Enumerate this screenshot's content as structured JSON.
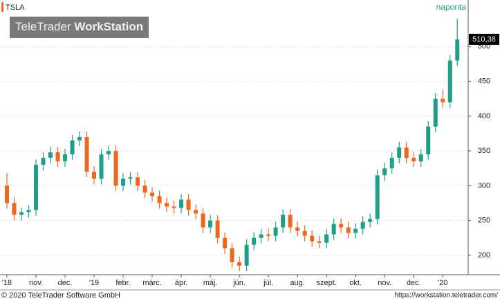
{
  "chart_data": {
    "type": "candlestick",
    "symbol": "TSLA",
    "interval": "naponta",
    "watermark": [
      "TeleTrader",
      "WorkStation"
    ],
    "last_label": "510,38",
    "footer_left": "© 2020 TeleTrader Software GmbH",
    "footer_right": "https://workstation.teletrader.com/",
    "up_color": "#1f9e89",
    "down_color": "#f0661e",
    "grid": true,
    "x": [
      0,
      1,
      2,
      3,
      4,
      5,
      6,
      7,
      8,
      9,
      10,
      11,
      12,
      13,
      14,
      15,
      16,
      17,
      18,
      19,
      20,
      21,
      22,
      23,
      24,
      25,
      26,
      27,
      28,
      29,
      30,
      31,
      32,
      33,
      34,
      35,
      36,
      37,
      38,
      39,
      40,
      41,
      42,
      43,
      44,
      45,
      46,
      47,
      48,
      49,
      50,
      51,
      52,
      53,
      54,
      55,
      56,
      57,
      58,
      59,
      60,
      61,
      62
    ],
    "open": [
      300,
      275,
      258,
      262,
      265,
      330,
      340,
      348,
      335,
      345,
      365,
      370,
      320,
      310,
      345,
      350,
      300,
      310,
      312,
      300,
      290,
      285,
      275,
      270,
      268,
      280,
      265,
      260,
      240,
      250,
      225,
      210,
      190,
      185,
      215,
      225,
      230,
      228,
      240,
      258,
      240,
      235,
      228,
      220,
      218,
      230,
      245,
      240,
      232,
      238,
      248,
      252,
      315,
      325,
      340,
      355,
      340,
      335,
      345,
      385,
      425,
      420,
      480
    ],
    "high": [
      318,
      283,
      268,
      272,
      338,
      348,
      356,
      356,
      353,
      373,
      378,
      378,
      328,
      353,
      358,
      358,
      318,
      320,
      320,
      308,
      298,
      293,
      283,
      278,
      288,
      288,
      273,
      268,
      258,
      258,
      233,
      218,
      198,
      223,
      233,
      238,
      238,
      248,
      266,
      266,
      248,
      243,
      236,
      228,
      238,
      253,
      253,
      248,
      246,
      256,
      260,
      323,
      333,
      348,
      363,
      363,
      348,
      353,
      393,
      433,
      438,
      488,
      540
    ],
    "low": [
      267,
      250,
      250,
      254,
      257,
      322,
      332,
      327,
      327,
      337,
      357,
      312,
      302,
      302,
      337,
      292,
      292,
      302,
      292,
      282,
      277,
      267,
      262,
      260,
      260,
      257,
      252,
      232,
      232,
      217,
      202,
      182,
      177,
      177,
      207,
      217,
      220,
      220,
      232,
      232,
      227,
      220,
      212,
      210,
      210,
      222,
      232,
      224,
      224,
      230,
      240,
      244,
      307,
      317,
      332,
      332,
      327,
      327,
      337,
      377,
      412,
      412,
      472
    ],
    "close": [
      275,
      258,
      262,
      265,
      330,
      340,
      348,
      335,
      345,
      365,
      370,
      320,
      310,
      345,
      350,
      300,
      310,
      312,
      300,
      290,
      285,
      275,
      270,
      268,
      280,
      265,
      260,
      240,
      250,
      225,
      210,
      190,
      185,
      215,
      225,
      230,
      228,
      240,
      258,
      240,
      235,
      228,
      220,
      218,
      230,
      245,
      240,
      232,
      238,
      248,
      252,
      315,
      325,
      340,
      355,
      340,
      335,
      345,
      385,
      425,
      420,
      480,
      510.38
    ],
    "xlim": [
      -0.95,
      63.5
    ],
    "xticks": [
      {
        "value": 0,
        "label": "'18"
      },
      {
        "value": 4,
        "label": "nov."
      },
      {
        "value": 8,
        "label": "dec."
      },
      {
        "value": 12,
        "label": "'19"
      },
      {
        "value": 16,
        "label": "febr."
      },
      {
        "value": 20,
        "label": "márc."
      },
      {
        "value": 24,
        "label": "ápr."
      },
      {
        "value": 28,
        "label": "máj."
      },
      {
        "value": 32,
        "label": "jún."
      },
      {
        "value": 36,
        "label": "júl."
      },
      {
        "value": 40,
        "label": "aug."
      },
      {
        "value": 44,
        "label": "szept."
      },
      {
        "value": 48,
        "label": "okt."
      },
      {
        "value": 52,
        "label": "nov."
      },
      {
        "value": 56,
        "label": "dec."
      },
      {
        "value": 60,
        "label": "'20"
      }
    ],
    "ylim": [
      172,
      567
    ],
    "yticks": [
      200,
      250,
      300,
      350,
      400,
      450,
      500
    ]
  }
}
